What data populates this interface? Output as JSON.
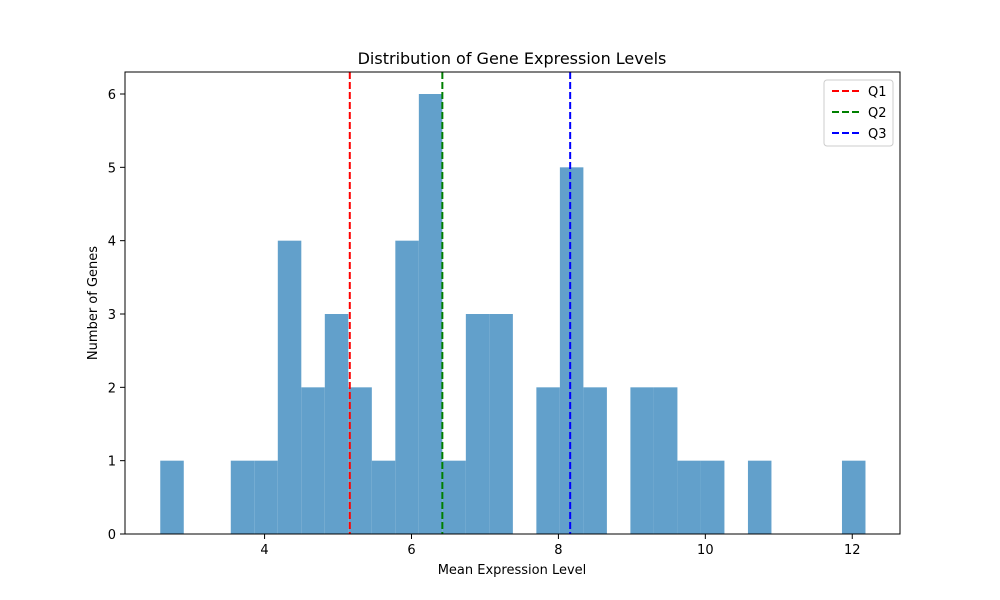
{
  "chart_data": {
    "type": "bar",
    "title": "Distribution of Gene Expression Levels",
    "xlabel": "Mean Expression Level",
    "ylabel": "Number of Genes",
    "xlim": [
      2.1,
      12.65
    ],
    "ylim": [
      0,
      6.3
    ],
    "x_ticks": [
      4,
      6,
      8,
      10,
      12
    ],
    "y_ticks": [
      0,
      1,
      2,
      3,
      4,
      5,
      6
    ],
    "grid": false,
    "legend_position": "top-right",
    "bar_color": "#62a0cb",
    "bins": [
      {
        "x0": 2.58,
        "x1": 2.9,
        "count": 1
      },
      {
        "x0": 2.9,
        "x1": 3.22,
        "count": 0
      },
      {
        "x0": 3.22,
        "x1": 3.54,
        "count": 0
      },
      {
        "x0": 3.54,
        "x1": 3.86,
        "count": 1
      },
      {
        "x0": 3.86,
        "x1": 4.18,
        "count": 1
      },
      {
        "x0": 4.18,
        "x1": 4.5,
        "count": 4
      },
      {
        "x0": 4.5,
        "x1": 4.82,
        "count": 2
      },
      {
        "x0": 4.82,
        "x1": 5.14,
        "count": 3
      },
      {
        "x0": 5.14,
        "x1": 5.46,
        "count": 2
      },
      {
        "x0": 5.46,
        "x1": 5.78,
        "count": 1
      },
      {
        "x0": 5.78,
        "x1": 6.1,
        "count": 4
      },
      {
        "x0": 6.1,
        "x1": 6.42,
        "count": 6
      },
      {
        "x0": 6.42,
        "x1": 6.74,
        "count": 1
      },
      {
        "x0": 6.74,
        "x1": 7.06,
        "count": 3
      },
      {
        "x0": 7.06,
        "x1": 7.38,
        "count": 3
      },
      {
        "x0": 7.38,
        "x1": 7.7,
        "count": 0
      },
      {
        "x0": 7.7,
        "x1": 8.02,
        "count": 2
      },
      {
        "x0": 8.02,
        "x1": 8.34,
        "count": 5
      },
      {
        "x0": 8.34,
        "x1": 8.66,
        "count": 2
      },
      {
        "x0": 8.66,
        "x1": 8.98,
        "count": 0
      },
      {
        "x0": 8.98,
        "x1": 9.3,
        "count": 2
      },
      {
        "x0": 9.3,
        "x1": 9.62,
        "count": 2
      },
      {
        "x0": 9.62,
        "x1": 9.94,
        "count": 1
      },
      {
        "x0": 9.94,
        "x1": 10.26,
        "count": 1
      },
      {
        "x0": 10.26,
        "x1": 10.58,
        "count": 0
      },
      {
        "x0": 10.58,
        "x1": 10.9,
        "count": 1
      },
      {
        "x0": 10.9,
        "x1": 11.22,
        "count": 0
      },
      {
        "x0": 11.22,
        "x1": 11.54,
        "count": 0
      },
      {
        "x0": 11.54,
        "x1": 11.86,
        "count": 0
      },
      {
        "x0": 11.86,
        "x1": 12.18,
        "count": 1
      }
    ],
    "reference_lines": [
      {
        "name": "Q1",
        "x": 5.16,
        "color": "#ff0000"
      },
      {
        "name": "Q2",
        "x": 6.42,
        "color": "#008000"
      },
      {
        "name": "Q3",
        "x": 8.16,
        "color": "#0000ff"
      }
    ]
  }
}
